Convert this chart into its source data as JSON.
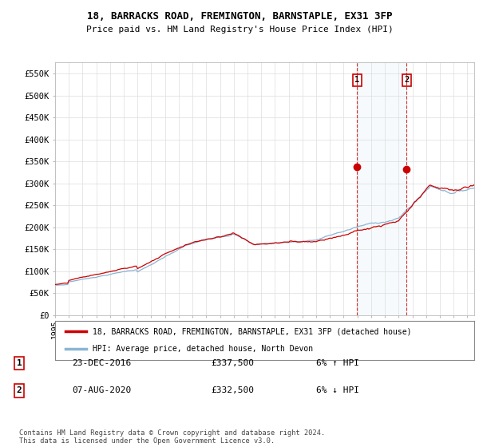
{
  "title": "18, BARRACKS ROAD, FREMINGTON, BARNSTAPLE, EX31 3FP",
  "subtitle": "Price paid vs. HM Land Registry's House Price Index (HPI)",
  "ylabel_ticks": [
    "£0",
    "£50K",
    "£100K",
    "£150K",
    "£200K",
    "£250K",
    "£300K",
    "£350K",
    "£400K",
    "£450K",
    "£500K",
    "£550K"
  ],
  "ytick_values": [
    0,
    50000,
    100000,
    150000,
    200000,
    250000,
    300000,
    350000,
    400000,
    450000,
    500000,
    550000
  ],
  "ylim": [
    0,
    575000
  ],
  "xlim_start": 1995.0,
  "xlim_end": 2025.5,
  "hpi_color": "#8ab4d4",
  "hpi_fill_color": "#c8dff0",
  "price_color": "#cc0000",
  "marker1_date": 2016.98,
  "marker2_date": 2020.59,
  "marker1_value": 337500,
  "marker2_value": 332500,
  "marker1_label": "1",
  "marker2_label": "2",
  "legend_line1": "18, BARRACKS ROAD, FREMINGTON, BARNSTAPLE, EX31 3FP (detached house)",
  "legend_line2": "HPI: Average price, detached house, North Devon",
  "table_row1_num": "1",
  "table_row1_date": "23-DEC-2016",
  "table_row1_price": "£337,500",
  "table_row1_hpi": "6% ↑ HPI",
  "table_row2_num": "2",
  "table_row2_date": "07-AUG-2020",
  "table_row2_price": "£332,500",
  "table_row2_hpi": "6% ↓ HPI",
  "footer": "Contains HM Land Registry data © Crown copyright and database right 2024.\nThis data is licensed under the Open Government Licence v3.0.",
  "background_color": "#ffffff",
  "grid_color": "#dddddd"
}
